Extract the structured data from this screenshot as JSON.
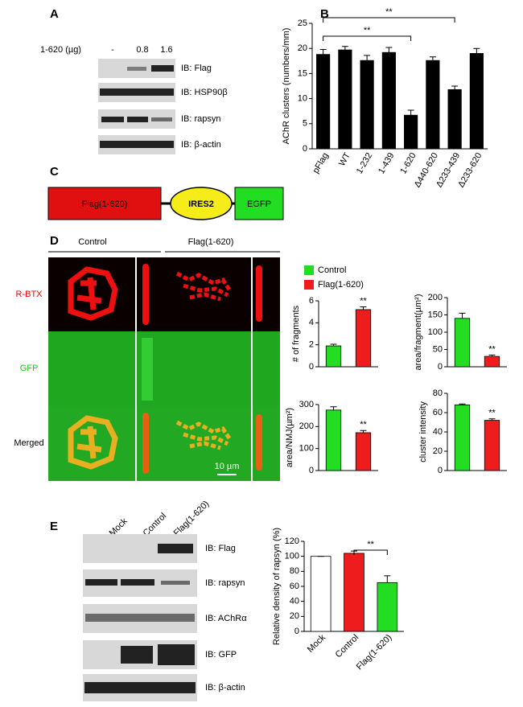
{
  "panels": {
    "a": {
      "letter": "A",
      "dose_label": "1-620 (µg)",
      "doses": [
        "-",
        "0.8",
        "1.6"
      ],
      "blots": [
        "IB: Flag",
        "IB: HSP90β",
        "IB: rapsyn",
        "IB: β-actin"
      ]
    },
    "b": {
      "letter": "B"
    },
    "c": {
      "letter": "C",
      "constructs": [
        "Flag(1-620)",
        "IRES2",
        "EGFP"
      ]
    },
    "d": {
      "letter": "D",
      "columns": [
        "Control",
        "Flag(1-620)"
      ],
      "rows": [
        "R-BTX",
        "GFP",
        "Merged"
      ],
      "scale_bar": "10 µm",
      "legend": [
        {
          "name": "Control",
          "color": "#22dd22"
        },
        {
          "name": "Flag(1-620)",
          "color": "#ee1c1c"
        }
      ]
    },
    "e": {
      "letter": "E",
      "lanes": [
        "Mock",
        "Control",
        "Flag(1-620)"
      ],
      "blots": [
        "IB: Flag",
        "IB: rapsyn",
        "IB: AChRα",
        "IB: GFP",
        "IB: β-actin"
      ]
    }
  },
  "chart_data": [
    {
      "type": "bar",
      "y_label": "AChR clusters (numbers/mm)",
      "categories": [
        "pFlag",
        "WT",
        "1-232",
        "1-439",
        "1-620",
        "Δ440-620",
        "Δ233-439",
        "Δ233-620"
      ],
      "values": [
        18.8,
        19.7,
        17.6,
        19.2,
        6.7,
        17.6,
        11.8,
        19.0
      ],
      "errors": [
        1.0,
        0.7,
        1.0,
        1.0,
        1.0,
        0.7,
        0.7,
        1.0
      ],
      "colors": [
        "#000000",
        "#000000",
        "#000000",
        "#000000",
        "#000000",
        "#000000",
        "#000000",
        "#000000"
      ],
      "ylim": [
        0,
        25
      ],
      "yticks": [
        0,
        5,
        10,
        15,
        20,
        25
      ],
      "brackets": [
        {
          "label": "**",
          "from": "pFlag",
          "to": "1-620"
        },
        {
          "label": "**",
          "from": "pFlag",
          "to": "Δ233-439"
        }
      ]
    },
    {
      "type": "bar",
      "y_label": "# of fragments",
      "categories": [
        null,
        null
      ],
      "values": [
        1.9,
        5.2
      ],
      "errors": [
        0.15,
        0.25
      ],
      "colors": [
        "#22dd22",
        "#ee1c1c"
      ],
      "significance": [
        null,
        "**"
      ],
      "ylim": [
        0,
        6
      ],
      "yticks": [
        0,
        2,
        4,
        6
      ]
    },
    {
      "type": "bar",
      "y_label": "area/fragment(µm²)",
      "categories": [
        null,
        null
      ],
      "values": [
        140,
        30
      ],
      "errors": [
        15,
        4
      ],
      "colors": [
        "#22dd22",
        "#ee1c1c"
      ],
      "significance": [
        null,
        "**"
      ],
      "ylim": [
        0,
        200
      ],
      "yticks": [
        0,
        50,
        100,
        150,
        200
      ]
    },
    {
      "type": "bar",
      "y_label": "area/NMJ(µm²)",
      "categories": [
        null,
        null
      ],
      "values": [
        275,
        172
      ],
      "errors": [
        15,
        10
      ],
      "colors": [
        "#22dd22",
        "#ee1c1c"
      ],
      "significance": [
        null,
        "**"
      ],
      "ylim": [
        0,
        300
      ],
      "yticks": [
        0,
        100,
        200,
        300
      ]
    },
    {
      "type": "bar",
      "y_label": "cluster intensity",
      "categories": [
        null,
        null
      ],
      "values": [
        68,
        52
      ],
      "errors": [
        1,
        1.5
      ],
      "colors": [
        "#22dd22",
        "#ee1c1c"
      ],
      "significance": [
        null,
        "**"
      ],
      "ylim": [
        0,
        80
      ],
      "yticks": [
        0,
        20,
        40,
        60,
        80
      ]
    },
    {
      "type": "bar",
      "y_label": "Relative density of rapsyn (%)",
      "categories": [
        "Mock",
        "Control",
        "Flag(1-620)"
      ],
      "values": [
        100,
        104,
        65
      ],
      "errors": [
        0,
        3,
        9
      ],
      "colors": [
        "#ffffff",
        "#ee1c1c",
        "#22dd22"
      ],
      "ylim": [
        0,
        120
      ],
      "yticks": [
        0,
        20,
        40,
        60,
        80,
        100,
        120
      ],
      "brackets": [
        {
          "label": "**",
          "from": "Control",
          "to": "Flag(1-620)"
        }
      ]
    }
  ]
}
